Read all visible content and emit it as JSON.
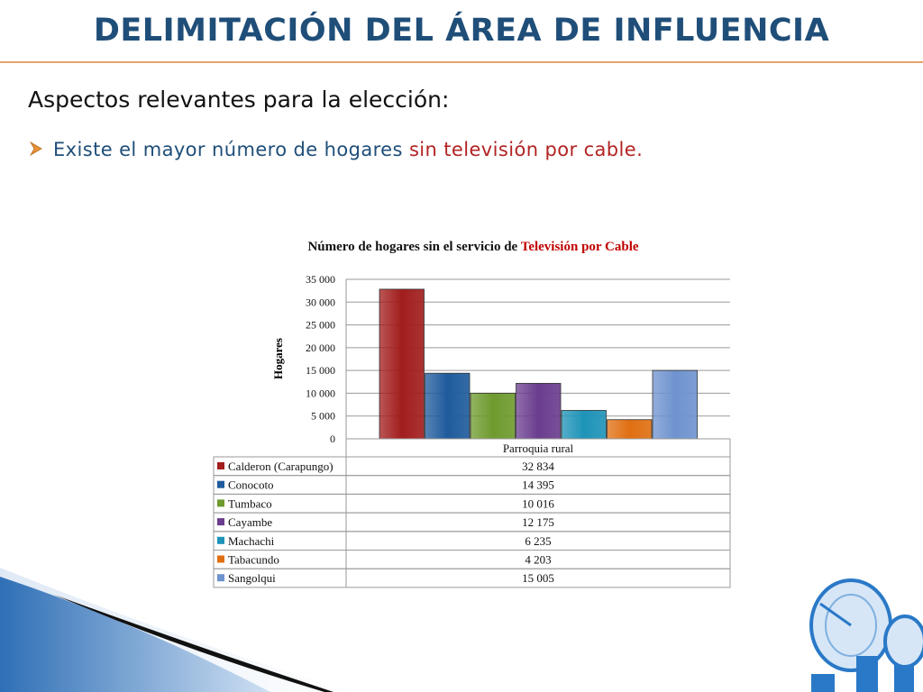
{
  "slide": {
    "title": "DELIMITACIÓN DEL ÁREA DE INFLUENCIA",
    "subtitle": "Aspectos relevantes para la elección:",
    "bullet_part1": "Existe el mayor número de hogares ",
    "bullet_part2": "sin televisión por cable."
  },
  "chart_data": {
    "type": "bar",
    "title_part1": "Número de hogares sin el servicio de ",
    "title_part2": "Televisión por Cable",
    "xlabel": "Parroquia rural",
    "ylabel": "Hogares",
    "ylim": [
      0,
      35000
    ],
    "yticks": [
      0,
      5000,
      10000,
      15000,
      20000,
      25000,
      30000,
      35000
    ],
    "ytick_labels": [
      "0",
      "5 000",
      "10 000",
      "15 000",
      "20 000",
      "25 000",
      "30 000",
      "35 000"
    ],
    "grid": true,
    "series": [
      {
        "name": "Calderon (Carapungo)",
        "value": 32834,
        "label": "32 834",
        "color": "#a21d1d"
      },
      {
        "name": "Conocoto",
        "value": 14395,
        "label": "14 395",
        "color": "#1f5b9c"
      },
      {
        "name": "Tumbaco",
        "value": 10016,
        "label": "10 016",
        "color": "#6e9a2e"
      },
      {
        "name": "Cayambe",
        "value": 12175,
        "label": "12 175",
        "color": "#6a3d8e"
      },
      {
        "name": "Machachi",
        "value": 6235,
        "label": "6 235",
        "color": "#1e93b8"
      },
      {
        "name": "Tabacundo",
        "value": 4203,
        "label": "4 203",
        "color": "#e06f12"
      },
      {
        "name": "Sangolqui",
        "value": 15005,
        "label": "15 005",
        "color": "#6f93cf"
      }
    ]
  }
}
